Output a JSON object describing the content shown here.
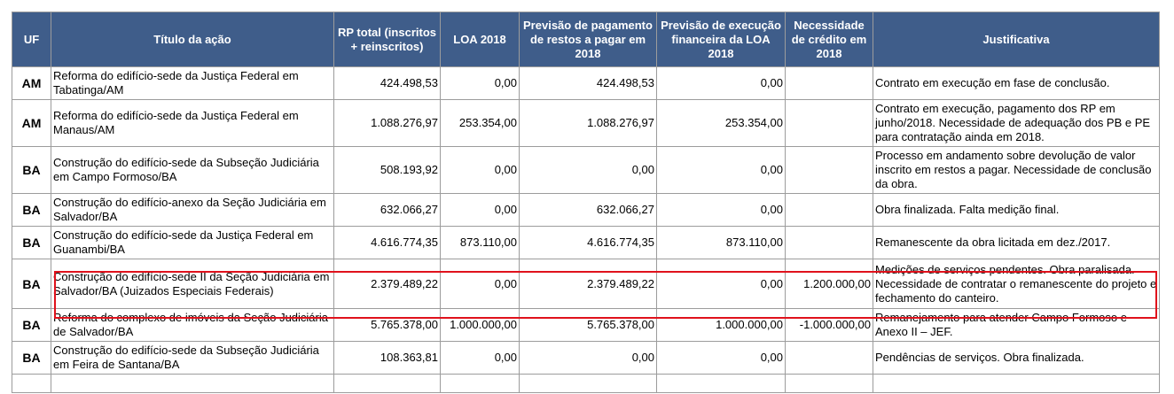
{
  "headers": {
    "uf": "UF",
    "titulo": "Título da ação",
    "rp_total": "RP total (inscritos + reinscritos)",
    "loa": "LOA 2018",
    "prev_pagamento": "Previsão de pagamento de restos a pagar em 2018",
    "prev_execucao": "Previsão de execução financeira da LOA 2018",
    "necessidade": "Necessidade de crédito em 2018",
    "justificativa": "Justificativa"
  },
  "rows": [
    {
      "uf": "AM",
      "titulo": "Reforma do edifício-sede da Justiça Federal em Tabatinga/AM",
      "rp_total": "424.498,53",
      "loa": "0,00",
      "prev_pagamento": "424.498,53",
      "prev_execucao": "0,00",
      "necessidade": "",
      "justificativa": "Contrato em execução em fase de conclusão."
    },
    {
      "uf": "AM",
      "titulo": "Reforma do edifício-sede da Justiça Federal em Manaus/AM",
      "rp_total": "1.088.276,97",
      "loa": "253.354,00",
      "prev_pagamento": "1.088.276,97",
      "prev_execucao": "253.354,00",
      "necessidade": "",
      "justificativa": "Contrato em execução, pagamento dos RP em junho/2018. Necessidade de adequação dos PB e PE para contratação ainda em 2018."
    },
    {
      "uf": "BA",
      "titulo": "Construção do edifício-sede da Subseção Judiciária em Campo Formoso/BA",
      "rp_total": "508.193,92",
      "loa": "0,00",
      "prev_pagamento": "0,00",
      "prev_execucao": "0,00",
      "necessidade": "",
      "justificativa": "Processo em andamento sobre devolução de valor inscrito em restos a pagar. Necessidade de conclusão da obra."
    },
    {
      "uf": "BA",
      "titulo": "Construção do edifício-anexo da Seção Judiciária em Salvador/BA",
      "rp_total": "632.066,27",
      "loa": "0,00",
      "prev_pagamento": "632.066,27",
      "prev_execucao": "0,00",
      "necessidade": "",
      "justificativa": "Obra finalizada. Falta medição final."
    },
    {
      "uf": "BA",
      "titulo": "Construção do edifício-sede da Justiça Federal em Guanambi/BA",
      "rp_total": "4.616.774,35",
      "loa": "873.110,00",
      "prev_pagamento": "4.616.774,35",
      "prev_execucao": "873.110,00",
      "necessidade": "",
      "justificativa": "Remanescente da obra licitada em dez./2017."
    },
    {
      "uf": "BA",
      "titulo": "Construção do edifício-sede II da Seção Judiciária em Salvador/BA (Juizados Especiais Federais)",
      "rp_total": "2.379.489,22",
      "loa": "0,00",
      "prev_pagamento": "2.379.489,22",
      "prev_execucao": "0,00",
      "necessidade": "1.200.000,00",
      "justificativa": "Medições de serviços pendentes. Obra paralisada. Necessidade de contratar o remanescente do projeto e fechamento do canteiro."
    },
    {
      "uf": "BA",
      "titulo": "Reforma do complexo de imóveis da Seção Judiciária de Salvador/BA",
      "rp_total": "5.765.378,00",
      "loa": "1.000.000,00",
      "prev_pagamento": "5.765.378,00",
      "prev_execucao": "1.000.000,00",
      "necessidade": "-1.000.000,00",
      "justificativa": "Remanejamento para atender Campo Formoso e Anexo II – JEF."
    },
    {
      "uf": "BA",
      "titulo": "Construção do edifício-sede da Subseção Judiciária em Feira de Santana/BA",
      "rp_total": "108.363,81",
      "loa": "0,00",
      "prev_pagamento": "0,00",
      "prev_execucao": "0,00",
      "necessidade": "",
      "justificativa": "Pendências de serviços. Obra finalizada."
    }
  ],
  "colors": {
    "header_bg": "#3f5d8a",
    "highlight": "#e0121c"
  }
}
